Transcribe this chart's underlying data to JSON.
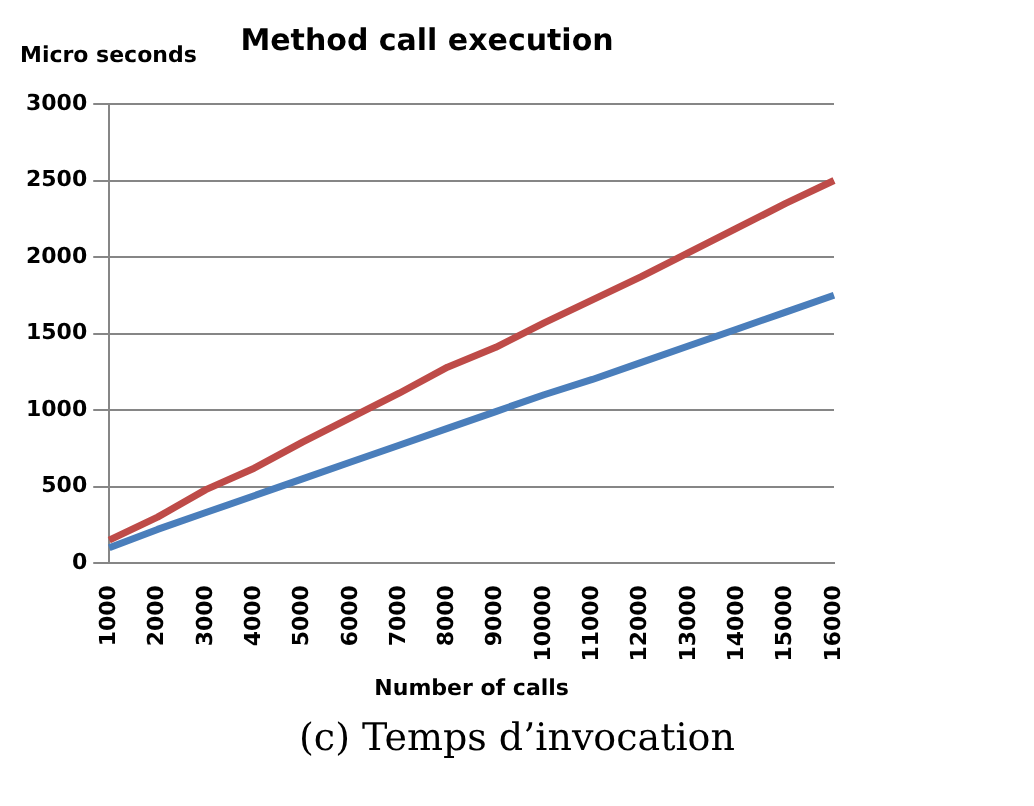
{
  "chart_data": {
    "type": "line",
    "title": "Method call execution",
    "xlabel": "Number of calls",
    "ylabel": "Micro seconds",
    "categories": [
      "1000",
      "2000",
      "3000",
      "4000",
      "5000",
      "6000",
      "7000",
      "8000",
      "9000",
      "10000",
      "11000",
      "12000",
      "13000",
      "14000",
      "15000",
      "16000"
    ],
    "series": [
      {
        "color": "#4a7ebb",
        "values": [
          100,
          220,
          330,
          440,
          550,
          660,
          770,
          880,
          990,
          1100,
          1200,
          1310,
          1420,
          1530,
          1640,
          1750
        ]
      },
      {
        "color": "#be4b48",
        "values": [
          150,
          300,
          480,
          620,
          790,
          950,
          1110,
          1280,
          1410,
          1570,
          1720,
          1870,
          2030,
          2190,
          2350,
          2500
        ]
      }
    ],
    "ylim": [
      0,
      3000
    ],
    "yticks": [
      0,
      500,
      1000,
      1500,
      2000,
      2500,
      3000
    ],
    "grid": "y",
    "marker": "none",
    "line_style": "solid",
    "legend": false,
    "annotations": [
      "(c) Temps d’invocation"
    ]
  }
}
